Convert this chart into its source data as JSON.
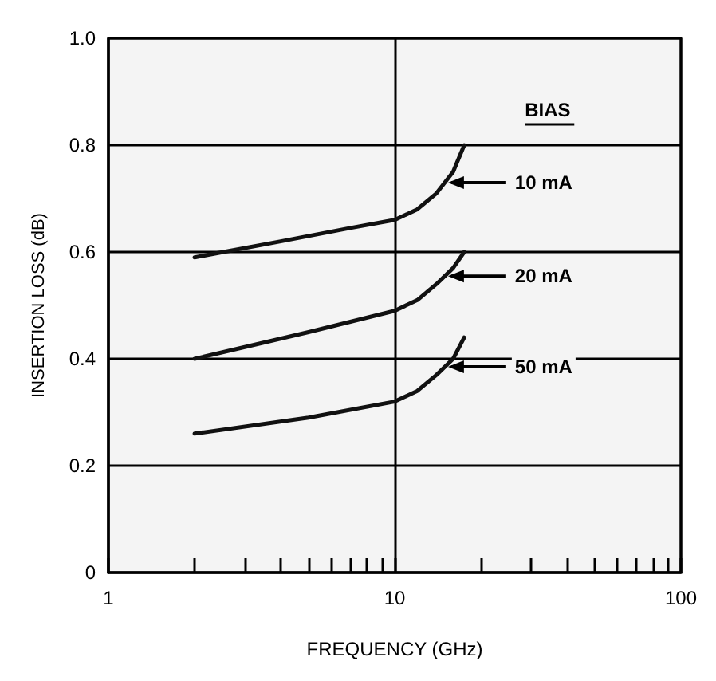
{
  "chart_data": {
    "type": "line",
    "xlabel": "FREQUENCY (GHz)",
    "ylabel": "INSERTION LOSS (dB)",
    "legend_title": "BIAS",
    "legend": false,
    "grid": true,
    "log": "x",
    "marker": "none",
    "line_style": "solid",
    "xlim": [
      1,
      100
    ],
    "xticks": [
      1,
      {
        "value": 2,
        "label": null
      },
      {
        "value": 3,
        "label": null
      },
      {
        "value": 4,
        "label": null
      },
      {
        "value": 5,
        "label": null
      },
      {
        "value": 6,
        "label": null
      },
      {
        "value": 7,
        "label": null
      },
      {
        "value": 8,
        "label": null
      },
      {
        "value": 9,
        "label": null
      },
      10,
      {
        "value": 20,
        "label": null
      },
      {
        "value": 30,
        "label": null
      },
      {
        "value": 40,
        "label": null
      },
      {
        "value": 50,
        "label": null
      },
      {
        "value": 60,
        "label": null
      },
      {
        "value": 70,
        "label": null
      },
      {
        "value": 80,
        "label": null
      },
      {
        "value": 90,
        "label": null
      },
      100
    ],
    "ylim": [
      0,
      1
    ],
    "yticks": [
      0,
      0.2,
      0.4,
      0.6,
      0.8,
      {
        "value": 1,
        "label": "1.0"
      }
    ],
    "series": [
      {
        "name": "10 mA",
        "color": "#111111",
        "x": [
          2,
          4,
          7,
          10,
          12,
          14,
          16,
          17.5
        ],
        "values": [
          0.59,
          0.62,
          0.645,
          0.66,
          0.68,
          0.71,
          0.75,
          0.8
        ]
      },
      {
        "name": "20 mA",
        "color": "#111111",
        "x": [
          2,
          5,
          10,
          12,
          14,
          16,
          17.5
        ],
        "values": [
          0.4,
          0.45,
          0.49,
          0.51,
          0.54,
          0.57,
          0.6
        ]
      },
      {
        "name": "50 mA",
        "color": "#111111",
        "x": [
          2,
          5,
          10,
          12,
          14,
          16,
          17.5
        ],
        "values": [
          0.26,
          0.29,
          0.32,
          0.34,
          0.37,
          0.4,
          0.44
        ]
      }
    ]
  }
}
